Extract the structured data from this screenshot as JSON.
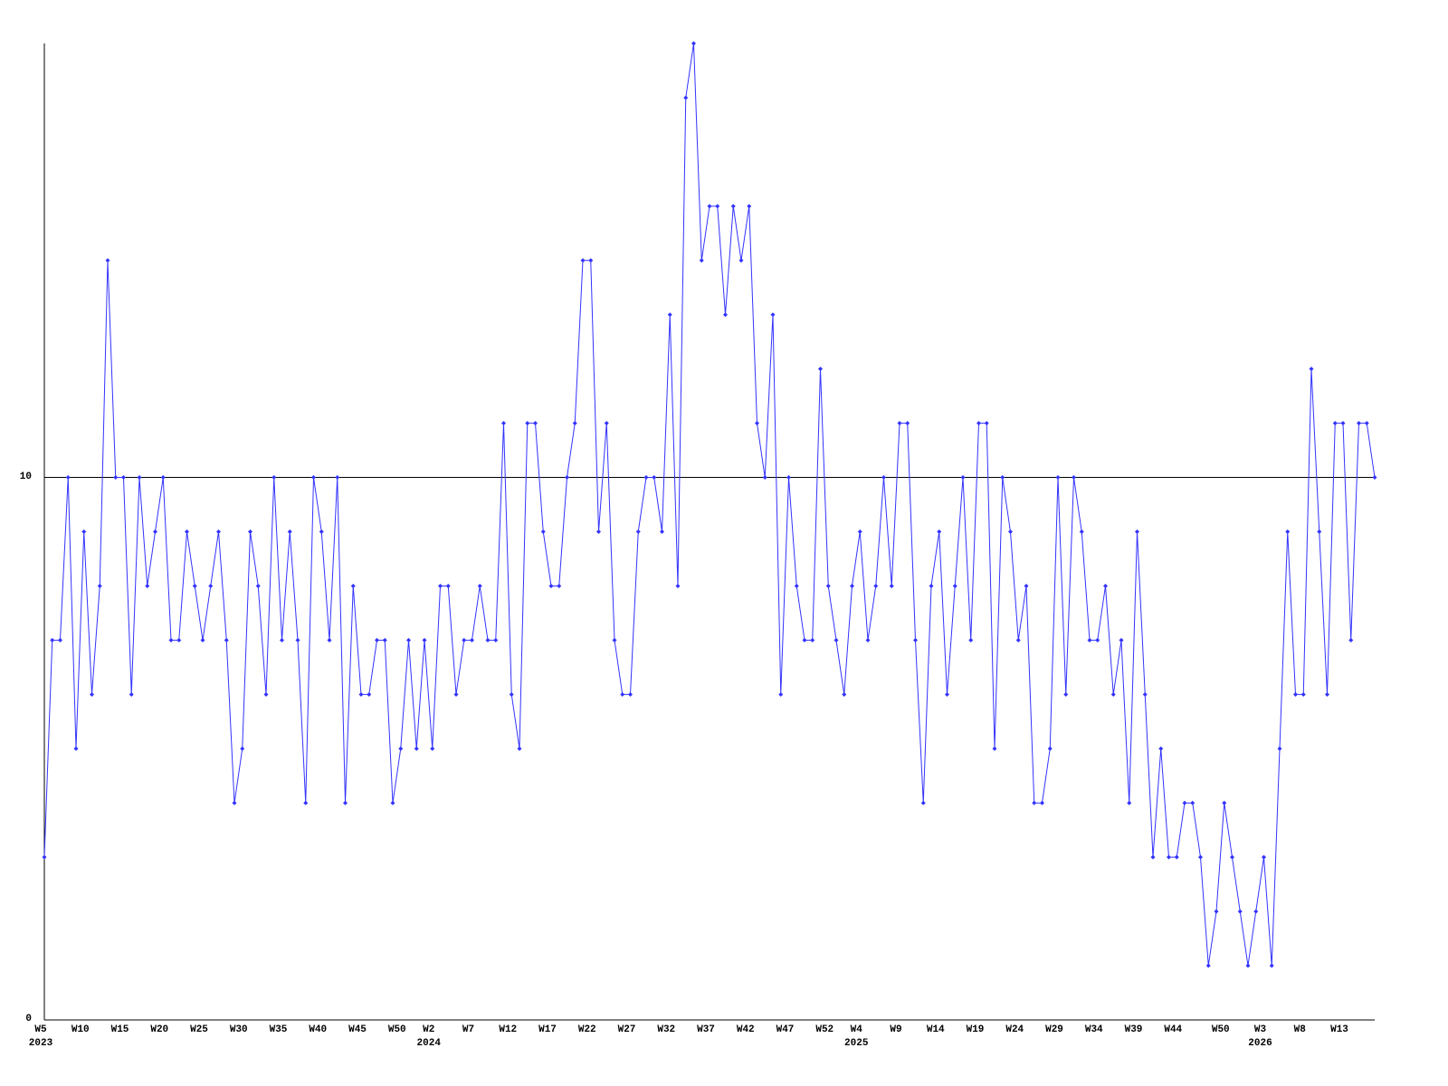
{
  "chart_data": {
    "type": "line",
    "categories": [
      "W5\n2023",
      null,
      null,
      null,
      null,
      "W10",
      null,
      null,
      null,
      null,
      "W15",
      null,
      null,
      null,
      null,
      "W20",
      null,
      null,
      null,
      null,
      "W25",
      null,
      null,
      null,
      null,
      "W30",
      null,
      null,
      null,
      null,
      "W35",
      null,
      null,
      null,
      null,
      "W40",
      null,
      null,
      null,
      null,
      "W45",
      null,
      null,
      null,
      null,
      "W50",
      null,
      null,
      null,
      "W2\n2024",
      null,
      null,
      null,
      null,
      "W7",
      null,
      null,
      null,
      null,
      "W12",
      null,
      null,
      null,
      null,
      "W17",
      null,
      null,
      null,
      null,
      "W22",
      null,
      null,
      null,
      null,
      "W27",
      null,
      null,
      null,
      null,
      "W32",
      null,
      null,
      null,
      null,
      "W37",
      null,
      null,
      null,
      null,
      "W42",
      null,
      null,
      null,
      null,
      "W47",
      null,
      null,
      null,
      null,
      "W52",
      null,
      null,
      null,
      "W4\n2025",
      null,
      null,
      null,
      null,
      "W9",
      null,
      null,
      null,
      null,
      "W14",
      null,
      null,
      null,
      null,
      "W19",
      null,
      null,
      null,
      null,
      "W24",
      null,
      null,
      null,
      null,
      "W29",
      null,
      null,
      null,
      null,
      "W34",
      null,
      null,
      null,
      null,
      "W39",
      null,
      null,
      null,
      null,
      "W44",
      null,
      null,
      null,
      null,
      null,
      "W50",
      null,
      null,
      null,
      null,
      "W3\n2026",
      null,
      null,
      null,
      null,
      "W8",
      null,
      null,
      null,
      null,
      "W13",
      null,
      null,
      null,
      null
    ],
    "series": [
      {
        "color": "#3333ff",
        "values": [
          3,
          7,
          7,
          10,
          5,
          9,
          6,
          8,
          14,
          10,
          10,
          6,
          10,
          8,
          9,
          10,
          7,
          7,
          9,
          8,
          7,
          8,
          9,
          7,
          4,
          5,
          9,
          8,
          6,
          10,
          7,
          9,
          7,
          4,
          10,
          9,
          7,
          10,
          4,
          8,
          6,
          6,
          7,
          7,
          4,
          5,
          7,
          5,
          7,
          5,
          8,
          8,
          6,
          7,
          7,
          8,
          7,
          7,
          11,
          6,
          5,
          11,
          11,
          9,
          8,
          8,
          10,
          11,
          14,
          14,
          9,
          11,
          7,
          6,
          6,
          9,
          10,
          10,
          9,
          13,
          8,
          17,
          18,
          14,
          15,
          15,
          13,
          15,
          14,
          15,
          11,
          10,
          13,
          6,
          10,
          8,
          7,
          7,
          12,
          8,
          7,
          6,
          8,
          9,
          7,
          8,
          10,
          8,
          11,
          11,
          7,
          4,
          8,
          9,
          6,
          8,
          10,
          7,
          11,
          11,
          5,
          10,
          9,
          7,
          8,
          4,
          4,
          5,
          10,
          6,
          10,
          9,
          7,
          7,
          8,
          6,
          7,
          4,
          9,
          6,
          3,
          5,
          3,
          3,
          4,
          4,
          3,
          1,
          2,
          4,
          3,
          2,
          1,
          2,
          3,
          1,
          5,
          9,
          6,
          6,
          12,
          9,
          6,
          11,
          11,
          7,
          11,
          11,
          10
        ]
      }
    ],
    "ylim": [
      0,
      18
    ],
    "yticks": [
      0,
      10
    ],
    "grid": true
  }
}
